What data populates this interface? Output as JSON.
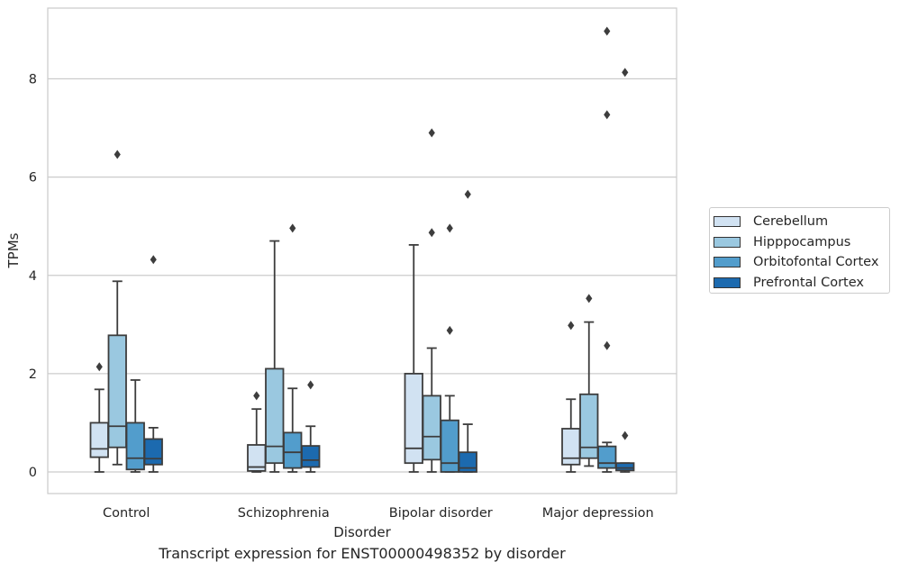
{
  "caption": "Transcript expression for ENST00000498352 by disorder",
  "legend": {
    "items": [
      {
        "label": "Cerebellum",
        "color": "#d1e2f2"
      },
      {
        "label": "Hipppocampus",
        "color": "#9ac8e0"
      },
      {
        "label": "Orbitofontal Cortex",
        "color": "#529dcc"
      },
      {
        "label": "Prefrontal Cortex",
        "color": "#1c6aaf"
      }
    ]
  },
  "chart_data": {
    "type": "box",
    "title": "",
    "xlabel": "Disorder",
    "ylabel": "TPMs",
    "ylim": [
      -0.45,
      9.45
    ],
    "yticks": [
      0,
      2,
      4,
      6,
      8
    ],
    "grid": "horizontal",
    "legend_position": "outside-right",
    "categories": [
      "Control",
      "Schizophrenia",
      "Bipolar disorder",
      "Major depression"
    ],
    "series": [
      {
        "name": "Cerebellum",
        "color": "#d1e2f2",
        "boxes": [
          {
            "whislo": 0.0,
            "q1": 0.3,
            "med": 0.47,
            "q3": 1.0,
            "whishi": 1.68,
            "fliers": [
              2.14
            ]
          },
          {
            "whislo": 0.0,
            "q1": 0.02,
            "med": 0.1,
            "q3": 0.55,
            "whishi": 1.28,
            "fliers": [
              1.55
            ]
          },
          {
            "whislo": 0.0,
            "q1": 0.18,
            "med": 0.48,
            "q3": 2.0,
            "whishi": 4.62,
            "fliers": []
          },
          {
            "whislo": 0.0,
            "q1": 0.15,
            "med": 0.28,
            "q3": 0.88,
            "whishi": 1.48,
            "fliers": [
              2.98
            ]
          }
        ]
      },
      {
        "name": "Hipppocampus",
        "color": "#9ac8e0",
        "boxes": [
          {
            "whislo": 0.15,
            "q1": 0.5,
            "med": 0.93,
            "q3": 2.78,
            "whishi": 3.88,
            "fliers": [
              6.46
            ]
          },
          {
            "whislo": 0.0,
            "q1": 0.18,
            "med": 0.52,
            "q3": 2.1,
            "whishi": 4.7,
            "fliers": []
          },
          {
            "whislo": 0.0,
            "q1": 0.25,
            "med": 0.72,
            "q3": 1.55,
            "whishi": 2.52,
            "fliers": [
              4.87,
              6.9
            ]
          },
          {
            "whislo": 0.12,
            "q1": 0.28,
            "med": 0.5,
            "q3": 1.58,
            "whishi": 3.05,
            "fliers": [
              3.53
            ]
          }
        ]
      },
      {
        "name": "Orbitofontal Cortex",
        "color": "#529dcc",
        "boxes": [
          {
            "whislo": 0.0,
            "q1": 0.05,
            "med": 0.28,
            "q3": 1.0,
            "whishi": 1.87,
            "fliers": []
          },
          {
            "whislo": 0.0,
            "q1": 0.08,
            "med": 0.4,
            "q3": 0.8,
            "whishi": 1.7,
            "fliers": [
              4.96
            ]
          },
          {
            "whislo": 0.0,
            "q1": 0.0,
            "med": 0.18,
            "q3": 1.05,
            "whishi": 1.55,
            "fliers": [
              2.88,
              4.96
            ]
          },
          {
            "whislo": 0.0,
            "q1": 0.08,
            "med": 0.18,
            "q3": 0.52,
            "whishi": 0.6,
            "fliers": [
              2.57,
              7.27,
              8.97
            ]
          }
        ]
      },
      {
        "name": "Prefrontal Cortex",
        "color": "#1c6aaf",
        "boxes": [
          {
            "whislo": 0.0,
            "q1": 0.15,
            "med": 0.27,
            "q3": 0.67,
            "whishi": 0.9,
            "fliers": [
              4.32
            ]
          },
          {
            "whislo": 0.0,
            "q1": 0.1,
            "med": 0.24,
            "q3": 0.53,
            "whishi": 0.93,
            "fliers": [
              1.77
            ]
          },
          {
            "whislo": 0.0,
            "q1": 0.0,
            "med": 0.08,
            "q3": 0.4,
            "whishi": 0.97,
            "fliers": [
              5.65
            ]
          },
          {
            "whislo": 0.0,
            "q1": 0.03,
            "med": 0.08,
            "q3": 0.18,
            "whishi": 0.18,
            "fliers": [
              0.74,
              8.13
            ]
          }
        ]
      }
    ]
  }
}
